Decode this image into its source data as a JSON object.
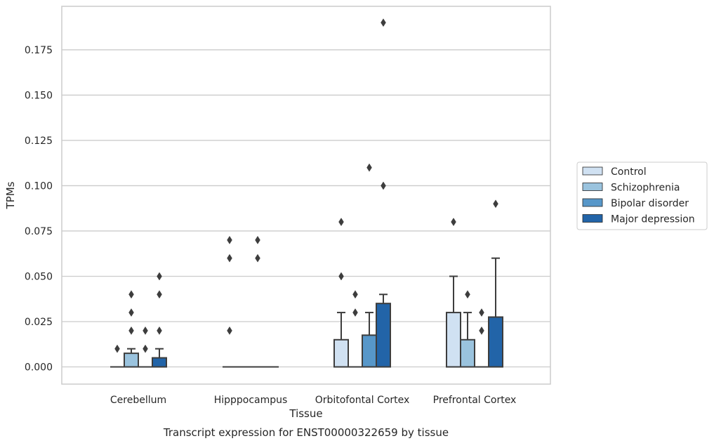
{
  "chart_data": {
    "type": "box",
    "caption": "Transcript expression for ENST00000322659 by tissue",
    "xlabel": "Tissue",
    "ylabel": "TPMs",
    "ylim": [
      -0.0095,
      0.199
    ],
    "yticks": [
      0.0,
      0.025,
      0.05,
      0.075,
      0.1,
      0.125,
      0.15,
      0.175
    ],
    "ytick_labels": [
      "0.000",
      "0.025",
      "0.050",
      "0.075",
      "0.100",
      "0.125",
      "0.150",
      "0.175"
    ],
    "grid": true,
    "legend_position": "right",
    "categories": [
      "Cerebellum",
      "Hipppocampus",
      "Orbitofontal Cortex",
      "Prefrontal Cortex"
    ],
    "series": [
      {
        "name": "Control",
        "color": "#d0e1f2",
        "boxes": [
          {
            "q1": 0,
            "median": 0,
            "q3": 0,
            "whisker_low": 0,
            "whisker_high": 0,
            "outliers": [
              0.01
            ]
          },
          {
            "q1": 0,
            "median": 0,
            "q3": 0,
            "whisker_low": 0,
            "whisker_high": 0,
            "outliers": [
              0.02,
              0.06,
              0.07
            ]
          },
          {
            "q1": 0,
            "median": 0,
            "q3": 0.015,
            "whisker_low": 0,
            "whisker_high": 0.03,
            "outliers": [
              0.05,
              0.08
            ]
          },
          {
            "q1": 0,
            "median": 0,
            "q3": 0.03,
            "whisker_low": 0,
            "whisker_high": 0.05,
            "outliers": [
              0.08
            ]
          }
        ]
      },
      {
        "name": "Schizophrenia",
        "color": "#9ac3de",
        "boxes": [
          {
            "q1": 0,
            "median": 0,
            "q3": 0.0075,
            "whisker_low": 0,
            "whisker_high": 0.01,
            "outliers": [
              0.02,
              0.03,
              0.04
            ]
          },
          {
            "q1": 0,
            "median": 0,
            "q3": 0,
            "whisker_low": 0,
            "whisker_high": 0,
            "outliers": []
          },
          {
            "q1": 0,
            "median": 0,
            "q3": 0,
            "whisker_low": 0,
            "whisker_high": 0,
            "outliers": [
              0.03,
              0.04
            ]
          },
          {
            "q1": 0,
            "median": 0,
            "q3": 0.015,
            "whisker_low": 0,
            "whisker_high": 0.03,
            "outliers": [
              0.04
            ]
          }
        ]
      },
      {
        "name": "Bipolar disorder",
        "color": "#5797c9",
        "boxes": [
          {
            "q1": 0,
            "median": 0,
            "q3": 0,
            "whisker_low": 0,
            "whisker_high": 0,
            "outliers": [
              0.01,
              0.02
            ]
          },
          {
            "q1": 0,
            "median": 0,
            "q3": 0,
            "whisker_low": 0,
            "whisker_high": 0,
            "outliers": [
              0.06,
              0.07
            ]
          },
          {
            "q1": 0,
            "median": 0,
            "q3": 0.0175,
            "whisker_low": 0,
            "whisker_high": 0.03,
            "outliers": [
              0.11
            ]
          },
          {
            "q1": 0,
            "median": 0,
            "q3": 0,
            "whisker_low": 0,
            "whisker_high": 0,
            "outliers": [
              0.02,
              0.03
            ]
          }
        ]
      },
      {
        "name": "Major depression",
        "color": "#2264a8",
        "boxes": [
          {
            "q1": 0,
            "median": 0,
            "q3": 0.005,
            "whisker_low": 0,
            "whisker_high": 0.01,
            "outliers": [
              0.02,
              0.04,
              0.05
            ]
          },
          {
            "q1": 0,
            "median": 0,
            "q3": 0,
            "whisker_low": 0,
            "whisker_high": 0,
            "outliers": []
          },
          {
            "q1": 0,
            "median": 0,
            "q3": 0.035,
            "whisker_low": 0,
            "whisker_high": 0.04,
            "outliers": [
              0.1,
              0.19
            ]
          },
          {
            "q1": 0,
            "median": 0,
            "q3": 0.0275,
            "whisker_low": 0,
            "whisker_high": 0.06,
            "outliers": [
              0.09
            ]
          }
        ]
      }
    ]
  },
  "colors": {
    "grid": "#cccccc",
    "edge": "#3d3d3d",
    "text": "#262626",
    "frame": "#cccccc"
  }
}
